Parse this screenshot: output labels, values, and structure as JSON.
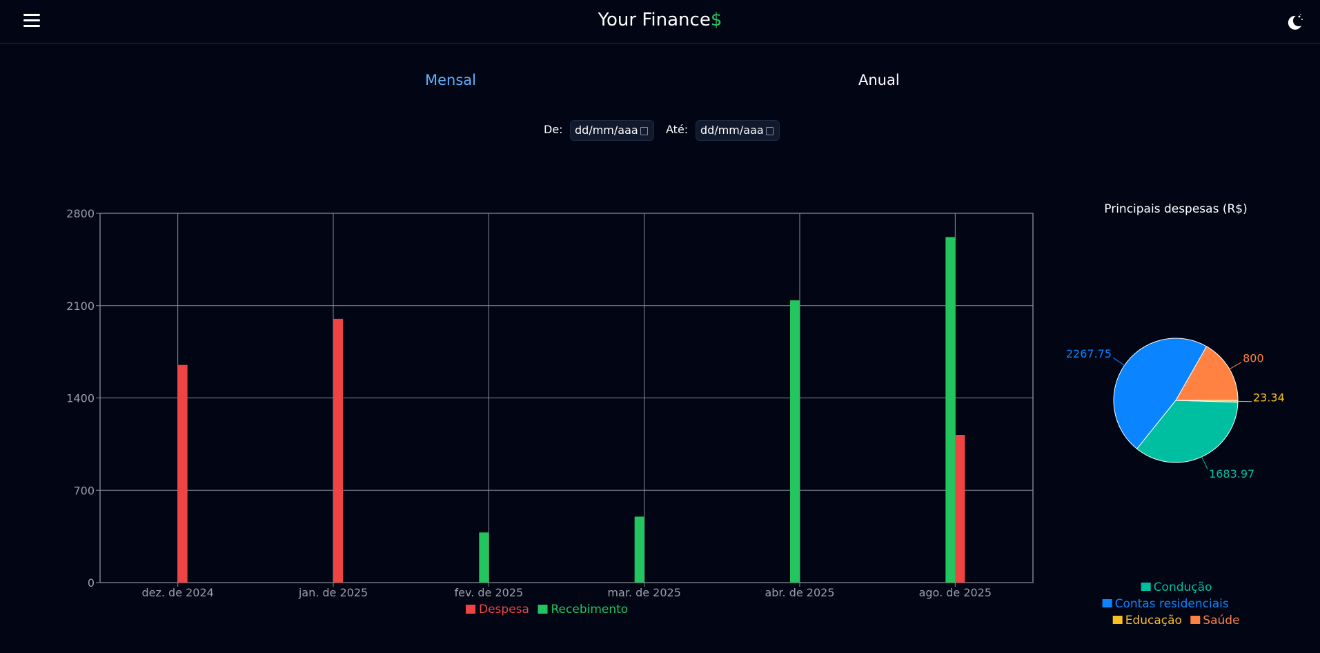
{
  "header": {
    "title": "Your Finance",
    "title_symbol": "$",
    "menu_icon": "hamburger-menu-icon",
    "theme_icon": "moon-stars-icon"
  },
  "tabs": [
    {
      "label": "Mensal",
      "active": true
    },
    {
      "label": "Anual",
      "active": false
    }
  ],
  "filters": {
    "from_label": "De:",
    "from_value": "dd/mm/aaa",
    "to_label": "Até:",
    "to_value": "dd/mm/aaa",
    "calendar_icon": "calendar-icon"
  },
  "colors": {
    "background": "#020614",
    "despesa": "#ef4444",
    "recebimento": "#22c55e",
    "conducao": "#00bfa0",
    "contas": "#0a84ff",
    "educacao": "#fbbf24",
    "saude": "#ff8243",
    "accent": "#60b0ff"
  },
  "chart_data": [
    {
      "type": "bar",
      "title": "",
      "xlabel": "",
      "ylabel": "",
      "categories": [
        "dez. de 2024",
        "jan. de 2025",
        "fev. de 2025",
        "mar. de 2025",
        "abr. de 2025",
        "ago. de 2025"
      ],
      "yticks": [
        0,
        700,
        1400,
        2100,
        2800
      ],
      "ylim": [
        0,
        2800
      ],
      "grid": true,
      "legend_position": "bottom",
      "series": [
        {
          "name": "Despesa",
          "color": "#ef4444",
          "values": [
            1650,
            2000,
            null,
            null,
            null,
            1120
          ]
        },
        {
          "name": "Recebimento",
          "color": "#22c55e",
          "values": [
            null,
            null,
            380,
            500,
            2140,
            2620
          ]
        }
      ]
    },
    {
      "type": "pie",
      "title": "Principais despesas (R$)",
      "legend_position": "bottom",
      "slices": [
        {
          "label": "Saúde",
          "value": 800,
          "value_label": "800",
          "color": "#ff8243"
        },
        {
          "label": "Contas residenciais",
          "value": 2267.75,
          "value_label": "2267.75",
          "color": "#0a84ff"
        },
        {
          "label": "Condução",
          "value": 1683.97,
          "value_label": "1683.97",
          "color": "#00bfa0"
        },
        {
          "label": "Educação",
          "value": 23.34,
          "value_label": "23.34",
          "color": "#fbbf24"
        }
      ],
      "legend": [
        {
          "label": "Condução",
          "color": "#00bfa0"
        },
        {
          "label": "Contas residenciais",
          "color": "#0a84ff"
        },
        {
          "label": "Educação",
          "color": "#fbbf24"
        },
        {
          "label": "Saúde",
          "color": "#ff8243"
        }
      ]
    }
  ]
}
